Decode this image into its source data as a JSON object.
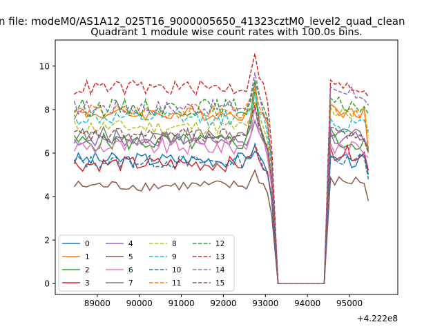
{
  "figure": {
    "suptitle": "n file: modeM0/AS1A12_025T16_9000005650_41323cztM0_level2_quad_clean"
  },
  "chart_data": {
    "type": "line",
    "title": "Quadrant 1 module wise count rates with 100.0s bins.",
    "xlabel": "",
    "ylabel": "",
    "x_offset_label": "+4.222e8",
    "xlim": [
      88000,
      96150
    ],
    "ylim": [
      -0.5,
      11.2
    ],
    "x_ticks": [
      89000,
      90000,
      91000,
      92000,
      93000,
      94000,
      95000
    ],
    "x_tick_labels": [
      "89000",
      "90000",
      "91000",
      "92000",
      "93000",
      "94000",
      "95000"
    ],
    "y_ticks": [
      0,
      2,
      4,
      6,
      8,
      10
    ],
    "y_tick_labels": [
      "0",
      "2",
      "4",
      "6",
      "8",
      "10"
    ],
    "grid": false,
    "legend_placement": "lower-left",
    "legend_columns": 4,
    "x_segments": [
      {
        "start": 88450,
        "step": 100,
        "count": 48
      },
      {
        "start": 93300,
        "step": 100,
        "count": 12
      },
      {
        "start": 94550,
        "step": 100,
        "count": 10
      }
    ],
    "series": [
      {
        "name": "0",
        "color": "#1f77b4",
        "dash": "solid",
        "mean": 5.7,
        "amp": 0.35,
        "peak": 6.2,
        "tail_mean": 5.6,
        "tail_end": 5.0
      },
      {
        "name": "1",
        "color": "#ff7f0e",
        "dash": "solid",
        "mean": 7.8,
        "amp": 0.3,
        "peak": 8.4,
        "tail_mean": 7.9,
        "tail_end": 6.0
      },
      {
        "name": "2",
        "color": "#2ca02c",
        "dash": "solid",
        "mean": 6.5,
        "amp": 0.4,
        "peak": 9.0,
        "tail_mean": 6.5,
        "tail_end": 6.1
      },
      {
        "name": "3",
        "color": "#d62728",
        "dash": "solid",
        "mean": 5.5,
        "amp": 0.35,
        "peak": 6.4,
        "tail_mean": 6.0,
        "tail_end": 5.2
      },
      {
        "name": "4",
        "color": "#9467bd",
        "dash": "solid",
        "mean": 6.6,
        "amp": 0.3,
        "peak": 7.5,
        "tail_mean": 6.7,
        "tail_end": 6.2
      },
      {
        "name": "5",
        "color": "#8c564b",
        "dash": "solid",
        "mean": 4.5,
        "amp": 0.25,
        "peak": 5.2,
        "tail_mean": 4.7,
        "tail_end": 3.8
      },
      {
        "name": "6",
        "color": "#e377c2",
        "dash": "solid",
        "mean": 6.3,
        "amp": 0.4,
        "peak": 8.1,
        "tail_mean": 6.2,
        "tail_end": 5.8
      },
      {
        "name": "7",
        "color": "#7f7f7f",
        "dash": "solid",
        "mean": 6.8,
        "amp": 0.4,
        "peak": 9.3,
        "tail_mean": 6.9,
        "tail_end": 6.3
      },
      {
        "name": "8",
        "color": "#bcbd22",
        "dash": "dashed",
        "mean": 7.2,
        "amp": 0.35,
        "peak": 8.8,
        "tail_mean": 7.8,
        "tail_end": 6.8
      },
      {
        "name": "9",
        "color": "#17becf",
        "dash": "dashed",
        "mean": 7.6,
        "amp": 0.35,
        "peak": 8.6,
        "tail_mean": 7.3,
        "tail_end": 7.0
      },
      {
        "name": "10",
        "color": "#1f77b4",
        "dash": "dashed",
        "mean": 5.6,
        "amp": 0.3,
        "peak": 6.3,
        "tail_mean": 5.7,
        "tail_end": 4.8
      },
      {
        "name": "11",
        "color": "#ff7f0e",
        "dash": "dashed",
        "mean": 7.9,
        "amp": 0.35,
        "peak": 8.9,
        "tail_mean": 8.0,
        "tail_end": 6.2
      },
      {
        "name": "12",
        "color": "#2ca02c",
        "dash": "dashed",
        "mean": 8.1,
        "amp": 0.4,
        "peak": 9.5,
        "tail_mean": 8.2,
        "tail_end": 7.8
      },
      {
        "name": "13",
        "color": "#d62728",
        "dash": "dashed",
        "mean": 9.0,
        "amp": 0.35,
        "peak": 10.7,
        "tail_mean": 9.0,
        "tail_end": 8.6
      },
      {
        "name": "14",
        "color": "#9467bd",
        "dash": "dashed",
        "mean": 8.1,
        "amp": 0.35,
        "peak": 9.8,
        "tail_mean": 8.7,
        "tail_end": 8.2
      },
      {
        "name": "15",
        "color": "#8c564b",
        "dash": "dashed",
        "mean": 6.8,
        "amp": 0.35,
        "peak": 8.3,
        "tail_mean": 6.9,
        "tail_end": 6.0
      }
    ]
  }
}
